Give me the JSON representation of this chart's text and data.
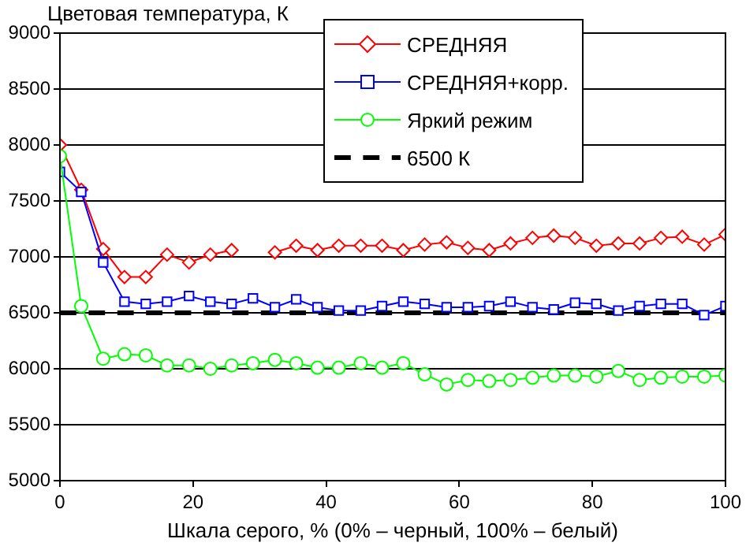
{
  "chart_data": {
    "type": "line",
    "ylabel": "Цветовая температура, К",
    "xlabel": "Шкала серого, % (0% – черный, 100% – белый)",
    "x": [
      0,
      3.2,
      6.5,
      9.7,
      12.9,
      16.1,
      19.4,
      22.6,
      25.8,
      29,
      32.3,
      35.5,
      38.7,
      41.9,
      45.2,
      48.4,
      51.6,
      54.8,
      58.1,
      61.3,
      64.5,
      67.7,
      71,
      74.2,
      77.4,
      80.6,
      83.9,
      87.1,
      90.3,
      93.5,
      96.8,
      100
    ],
    "series": [
      {
        "name": "СРЕДНЯЯ",
        "color": "#ff0000",
        "marker": "diamond",
        "values": [
          8000,
          7600,
          7070,
          6820,
          6820,
          7020,
          6950,
          7020,
          7060,
          null,
          7040,
          7100,
          7060,
          7100,
          7100,
          7100,
          7060,
          7110,
          7130,
          7080,
          7060,
          7120,
          7170,
          7190,
          7170,
          7100,
          7120,
          7120,
          7170,
          7180,
          7110,
          7200
        ]
      },
      {
        "name": "СРЕДНЯЯ+корр.",
        "color": "#0000ff",
        "marker": "square",
        "values": [
          7760,
          7580,
          6950,
          6600,
          6580,
          6600,
          6650,
          6600,
          6580,
          6630,
          6550,
          6620,
          6550,
          6520,
          6520,
          6560,
          6600,
          6580,
          6550,
          6550,
          6560,
          6600,
          6550,
          6530,
          6590,
          6580,
          6520,
          6560,
          6580,
          6580,
          6480,
          6560
        ]
      },
      {
        "name": "Яркий режим",
        "color": "#00ff00",
        "marker": "circle",
        "values": [
          7900,
          6560,
          6090,
          6130,
          6120,
          6030,
          6030,
          6000,
          6030,
          6050,
          6080,
          6050,
          6010,
          6010,
          6050,
          6010,
          6050,
          5950,
          5860,
          5900,
          5890,
          5900,
          5920,
          5940,
          5940,
          5930,
          5980,
          5900,
          5920,
          5930,
          5930,
          5940
        ]
      }
    ],
    "ref_lines": [
      {
        "axis": "y",
        "value": 6500,
        "label": "6500 К",
        "color": "#000000",
        "line_style": "dashed"
      }
    ],
    "xlim": [
      0,
      100
    ],
    "xticks": [
      0,
      20,
      40,
      60,
      80,
      100
    ],
    "ylim": [
      5000,
      9000
    ],
    "yticks": [
      5000,
      5500,
      6000,
      6500,
      7000,
      7500,
      8000,
      8500,
      9000
    ],
    "grid": "y",
    "legend": "top right"
  }
}
